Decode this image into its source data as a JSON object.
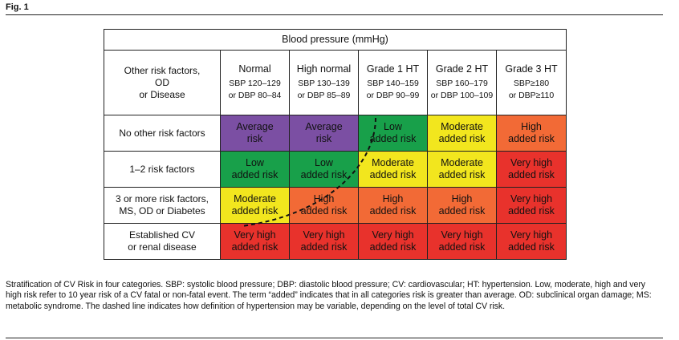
{
  "figure_label": "Fig. 1",
  "table": {
    "title": "Blood pressure (mmHg)",
    "corner_label": [
      "Other risk factors,",
      "OD",
      "or Disease"
    ],
    "columns": [
      {
        "name": "Normal",
        "line2": "SBP 120–129",
        "line3": "or DBP 80–84"
      },
      {
        "name": "High normal",
        "line2": "SBP 130–139",
        "line3": "or DBP 85–89"
      },
      {
        "name": "Grade 1 HT",
        "line2": "SBP 140–159",
        "line3": "or DBP 90–99"
      },
      {
        "name": "Grade 2 HT",
        "line2": "SBP 160–179",
        "line3": "or DBP 100–109"
      },
      {
        "name": "Grade 3 HT",
        "line2": "SBP≥180",
        "line3": "or DBP≥110"
      }
    ],
    "rows": [
      {
        "label": [
          "No other risk factors"
        ],
        "cells": [
          {
            "l1": "Average",
            "l2": "risk",
            "color": "#7b4fa3"
          },
          {
            "l1": "Average",
            "l2": "risk",
            "color": "#7b4fa3"
          },
          {
            "l1": "Low",
            "l2": "added risk",
            "color": "#18a04a"
          },
          {
            "l1": "Moderate",
            "l2": "added risk",
            "color": "#f2e61e"
          },
          {
            "l1": "High",
            "l2": "added risk",
            "color": "#f26a36"
          }
        ]
      },
      {
        "label": [
          "1–2 risk factors"
        ],
        "cells": [
          {
            "l1": "Low",
            "l2": "added risk",
            "color": "#18a04a"
          },
          {
            "l1": "Low",
            "l2": "added risk",
            "color": "#18a04a"
          },
          {
            "l1": "Moderate",
            "l2": "added risk",
            "color": "#f2e61e"
          },
          {
            "l1": "Moderate",
            "l2": "added risk",
            "color": "#f2e61e"
          },
          {
            "l1": "Very high",
            "l2": "added risk",
            "color": "#e8322c"
          }
        ]
      },
      {
        "label": [
          "3 or more risk factors,",
          "MS, OD or Diabetes"
        ],
        "cells": [
          {
            "l1": "Moderate",
            "l2": "added risk",
            "color": "#f2e61e"
          },
          {
            "l1": "High",
            "l2": "added risk",
            "color": "#f26a36"
          },
          {
            "l1": "High",
            "l2": "added risk",
            "color": "#f26a36"
          },
          {
            "l1": "High",
            "l2": "added risk",
            "color": "#f26a36"
          },
          {
            "l1": "Very high",
            "l2": "added risk",
            "color": "#e8322c"
          }
        ]
      },
      {
        "label": [
          "Established CV",
          "or renal disease"
        ],
        "cells": [
          {
            "l1": "Very high",
            "l2": "added risk",
            "color": "#e8322c"
          },
          {
            "l1": "Very high",
            "l2": "added risk",
            "color": "#e8322c"
          },
          {
            "l1": "Very high",
            "l2": "added risk",
            "color": "#e8322c"
          },
          {
            "l1": "Very high",
            "l2": "added risk",
            "color": "#e8322c"
          },
          {
            "l1": "Very high",
            "l2": "added risk",
            "color": "#e8322c"
          }
        ]
      }
    ]
  },
  "caption": "Stratification of CV Risk in four categories. SBP: systolic blood pressure; DBP: diastolic blood pressure; CV: cardiovascular; HT: hypertension. Low, moderate, high and very high risk refer to 10 year risk of a CV fatal or non-fatal event. The term “added” indicates that in all categories risk is greater than average. OD: subclinical organ damage; MS: metabolic syndrome. The dashed line indicates how definition of hypertension may be variable, depending on the level of total CV risk."
}
